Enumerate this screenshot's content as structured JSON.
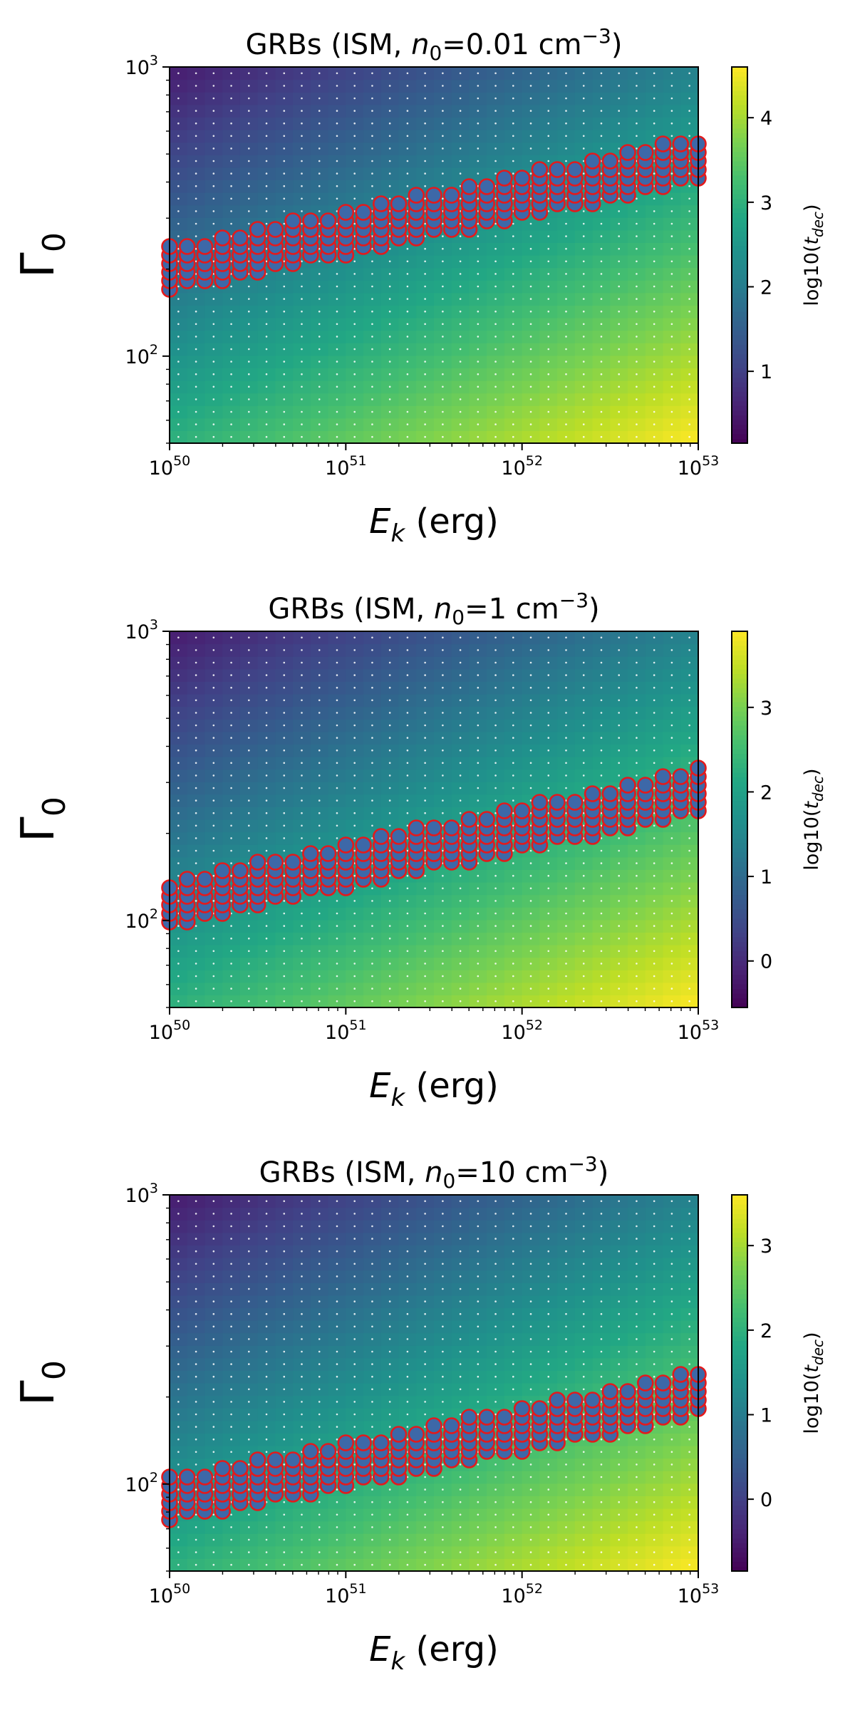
{
  "figure": {
    "panels_count": 3
  },
  "chart_data": [
    {
      "type": "heatmap",
      "title_parts": {
        "pre": "GRBs (ISM, ",
        "var": "n",
        "sub": "0",
        "mid": "=0.01 cm",
        "sup": "−3",
        "post": ")"
      },
      "xlabel_parts": {
        "var": "E",
        "sub": "k",
        "post": " (erg)"
      },
      "ylabel_parts": {
        "var": "Γ",
        "sub": "0"
      },
      "x_scale": "log",
      "y_scale": "log",
      "xlim": [
        1e+50,
        1e+53
      ],
      "ylim": [
        50,
        1000
      ],
      "x_ticks": [
        {
          "base": "10",
          "exp": "50"
        },
        {
          "base": "10",
          "exp": "51"
        },
        {
          "base": "10",
          "exp": "52"
        },
        {
          "base": "10",
          "exp": "53"
        }
      ],
      "y_ticks": [
        {
          "base": "10",
          "exp": "2",
          "value": 100
        },
        {
          "base": "10",
          "exp": "3",
          "value": 1000
        }
      ],
      "color_quantity": "log10(t_dec)",
      "colorbar_label_parts": {
        "pre": "log10(",
        "var": "t",
        "sub": "dec",
        "post": ")"
      },
      "colorbar_range": [
        0.15,
        4.6
      ],
      "colorbar_ticks": [
        1,
        2,
        3,
        4
      ],
      "colormap": "viridis",
      "grid_points": {
        "nx": 30,
        "ny": 30
      },
      "highlight": {
        "marker": "circle",
        "edgecolor": "#e31a1c",
        "facecolor": "#3d68a8",
        "band_center_gamma": [
          200,
          480
        ],
        "band_halfwidth_dex": 0.08
      }
    },
    {
      "type": "heatmap",
      "title_parts": {
        "pre": "GRBs (ISM, ",
        "var": "n",
        "sub": "0",
        "mid": "=1 cm",
        "sup": "−3",
        "post": ")"
      },
      "xlabel_parts": {
        "var": "E",
        "sub": "k",
        "post": " (erg)"
      },
      "ylabel_parts": {
        "var": "Γ",
        "sub": "0"
      },
      "x_scale": "log",
      "y_scale": "log",
      "xlim": [
        1e+50,
        1e+53
      ],
      "ylim": [
        50,
        1000
      ],
      "x_ticks": [
        {
          "base": "10",
          "exp": "50"
        },
        {
          "base": "10",
          "exp": "51"
        },
        {
          "base": "10",
          "exp": "52"
        },
        {
          "base": "10",
          "exp": "53"
        }
      ],
      "y_ticks": [
        {
          "base": "10",
          "exp": "2",
          "value": 100
        },
        {
          "base": "10",
          "exp": "3",
          "value": 1000
        }
      ],
      "color_quantity": "log10(t_dec)",
      "colorbar_label_parts": {
        "pre": "log10(",
        "var": "t",
        "sub": "dec",
        "post": ")"
      },
      "colorbar_range": [
        -0.55,
        3.9
      ],
      "colorbar_ticks": [
        0,
        1,
        2,
        3
      ],
      "colormap": "viridis",
      "grid_points": {
        "nx": 30,
        "ny": 30
      },
      "highlight": {
        "marker": "circle",
        "edgecolor": "#e31a1c",
        "facecolor": "#3d68a8",
        "band_center_gamma": [
          115,
          280
        ],
        "band_halfwidth_dex": 0.08
      }
    },
    {
      "type": "heatmap",
      "title_parts": {
        "pre": "GRBs (ISM, ",
        "var": "n",
        "sub": "0",
        "mid": "=10 cm",
        "sup": "−3",
        "post": ")"
      },
      "xlabel_parts": {
        "var": "E",
        "sub": "k",
        "post": " (erg)"
      },
      "ylabel_parts": {
        "var": "Γ",
        "sub": "0"
      },
      "x_scale": "log",
      "y_scale": "log",
      "xlim": [
        1e+50,
        1e+53
      ],
      "ylim": [
        50,
        1000
      ],
      "x_ticks": [
        {
          "base": "10",
          "exp": "50"
        },
        {
          "base": "10",
          "exp": "51"
        },
        {
          "base": "10",
          "exp": "52"
        },
        {
          "base": "10",
          "exp": "53"
        }
      ],
      "y_ticks": [
        {
          "base": "10",
          "exp": "2",
          "value": 100
        },
        {
          "base": "10",
          "exp": "3",
          "value": 1000
        }
      ],
      "color_quantity": "log10(t_dec)",
      "colorbar_label_parts": {
        "pre": "log10(",
        "var": "t",
        "sub": "dec",
        "post": ")"
      },
      "colorbar_range": [
        -0.85,
        3.6
      ],
      "colorbar_ticks": [
        0,
        1,
        2,
        3
      ],
      "colormap": "viridis",
      "grid_points": {
        "nx": 30,
        "ny": 30
      },
      "highlight": {
        "marker": "circle",
        "edgecolor": "#e31a1c",
        "facecolor": "#3d68a8",
        "band_center_gamma": [
          88,
          205
        ],
        "band_halfwidth_dex": 0.08
      }
    }
  ]
}
